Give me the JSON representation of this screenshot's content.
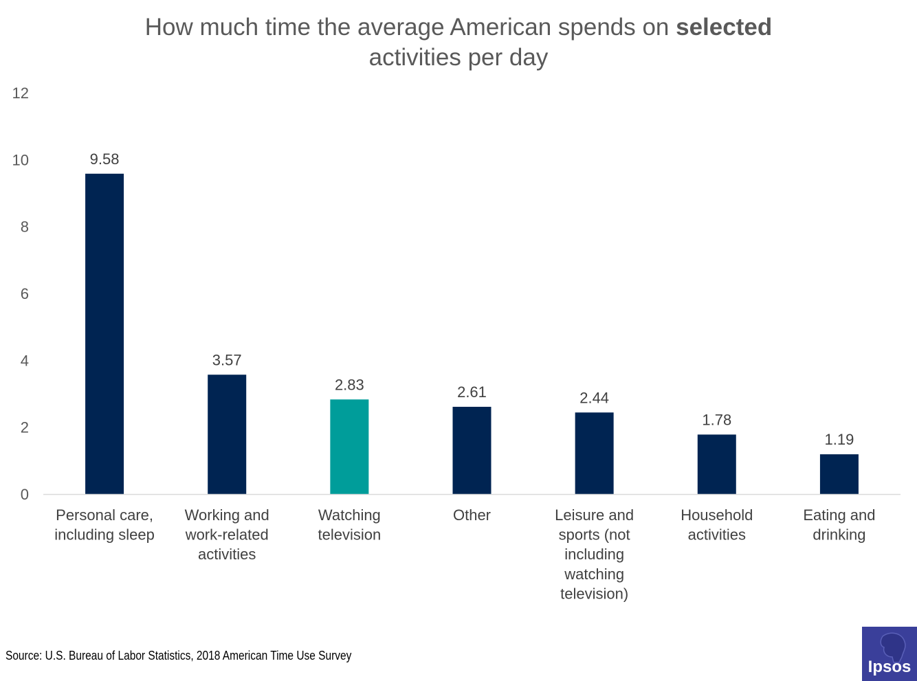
{
  "chart_data": {
    "type": "bar",
    "title_parts": [
      "How much time the average American spends on ",
      "selected",
      " activities per day"
    ],
    "categories": [
      [
        "Personal care,",
        "including sleep"
      ],
      [
        "Working and",
        "work-related",
        "activities"
      ],
      [
        "Watching",
        "television"
      ],
      [
        "Other"
      ],
      [
        "Leisure and",
        "sports (not",
        "including",
        "watching",
        "television)"
      ],
      [
        "Household",
        "activities"
      ],
      [
        "Eating and",
        "drinking"
      ]
    ],
    "values": [
      9.58,
      3.57,
      2.83,
      2.61,
      2.44,
      1.78,
      1.19
    ],
    "value_labels": [
      "9.58",
      "3.57",
      "2.83",
      "2.61",
      "2.44",
      "1.78",
      "1.19"
    ],
    "colors": [
      "#002452",
      "#002452",
      "#009d9a",
      "#002452",
      "#002452",
      "#002452",
      "#002452"
    ],
    "highlight_index": 2,
    "ylim": [
      0,
      12
    ],
    "yticks": [
      0,
      2,
      4,
      6,
      8,
      10,
      12
    ],
    "xlabel": "",
    "ylabel": "",
    "grid": false,
    "legend": "none"
  },
  "footer": {
    "source": "Source: U.S. Bureau of Labor Statistics, 2018 American Time Use Survey",
    "logo_text": "Ipsos"
  }
}
